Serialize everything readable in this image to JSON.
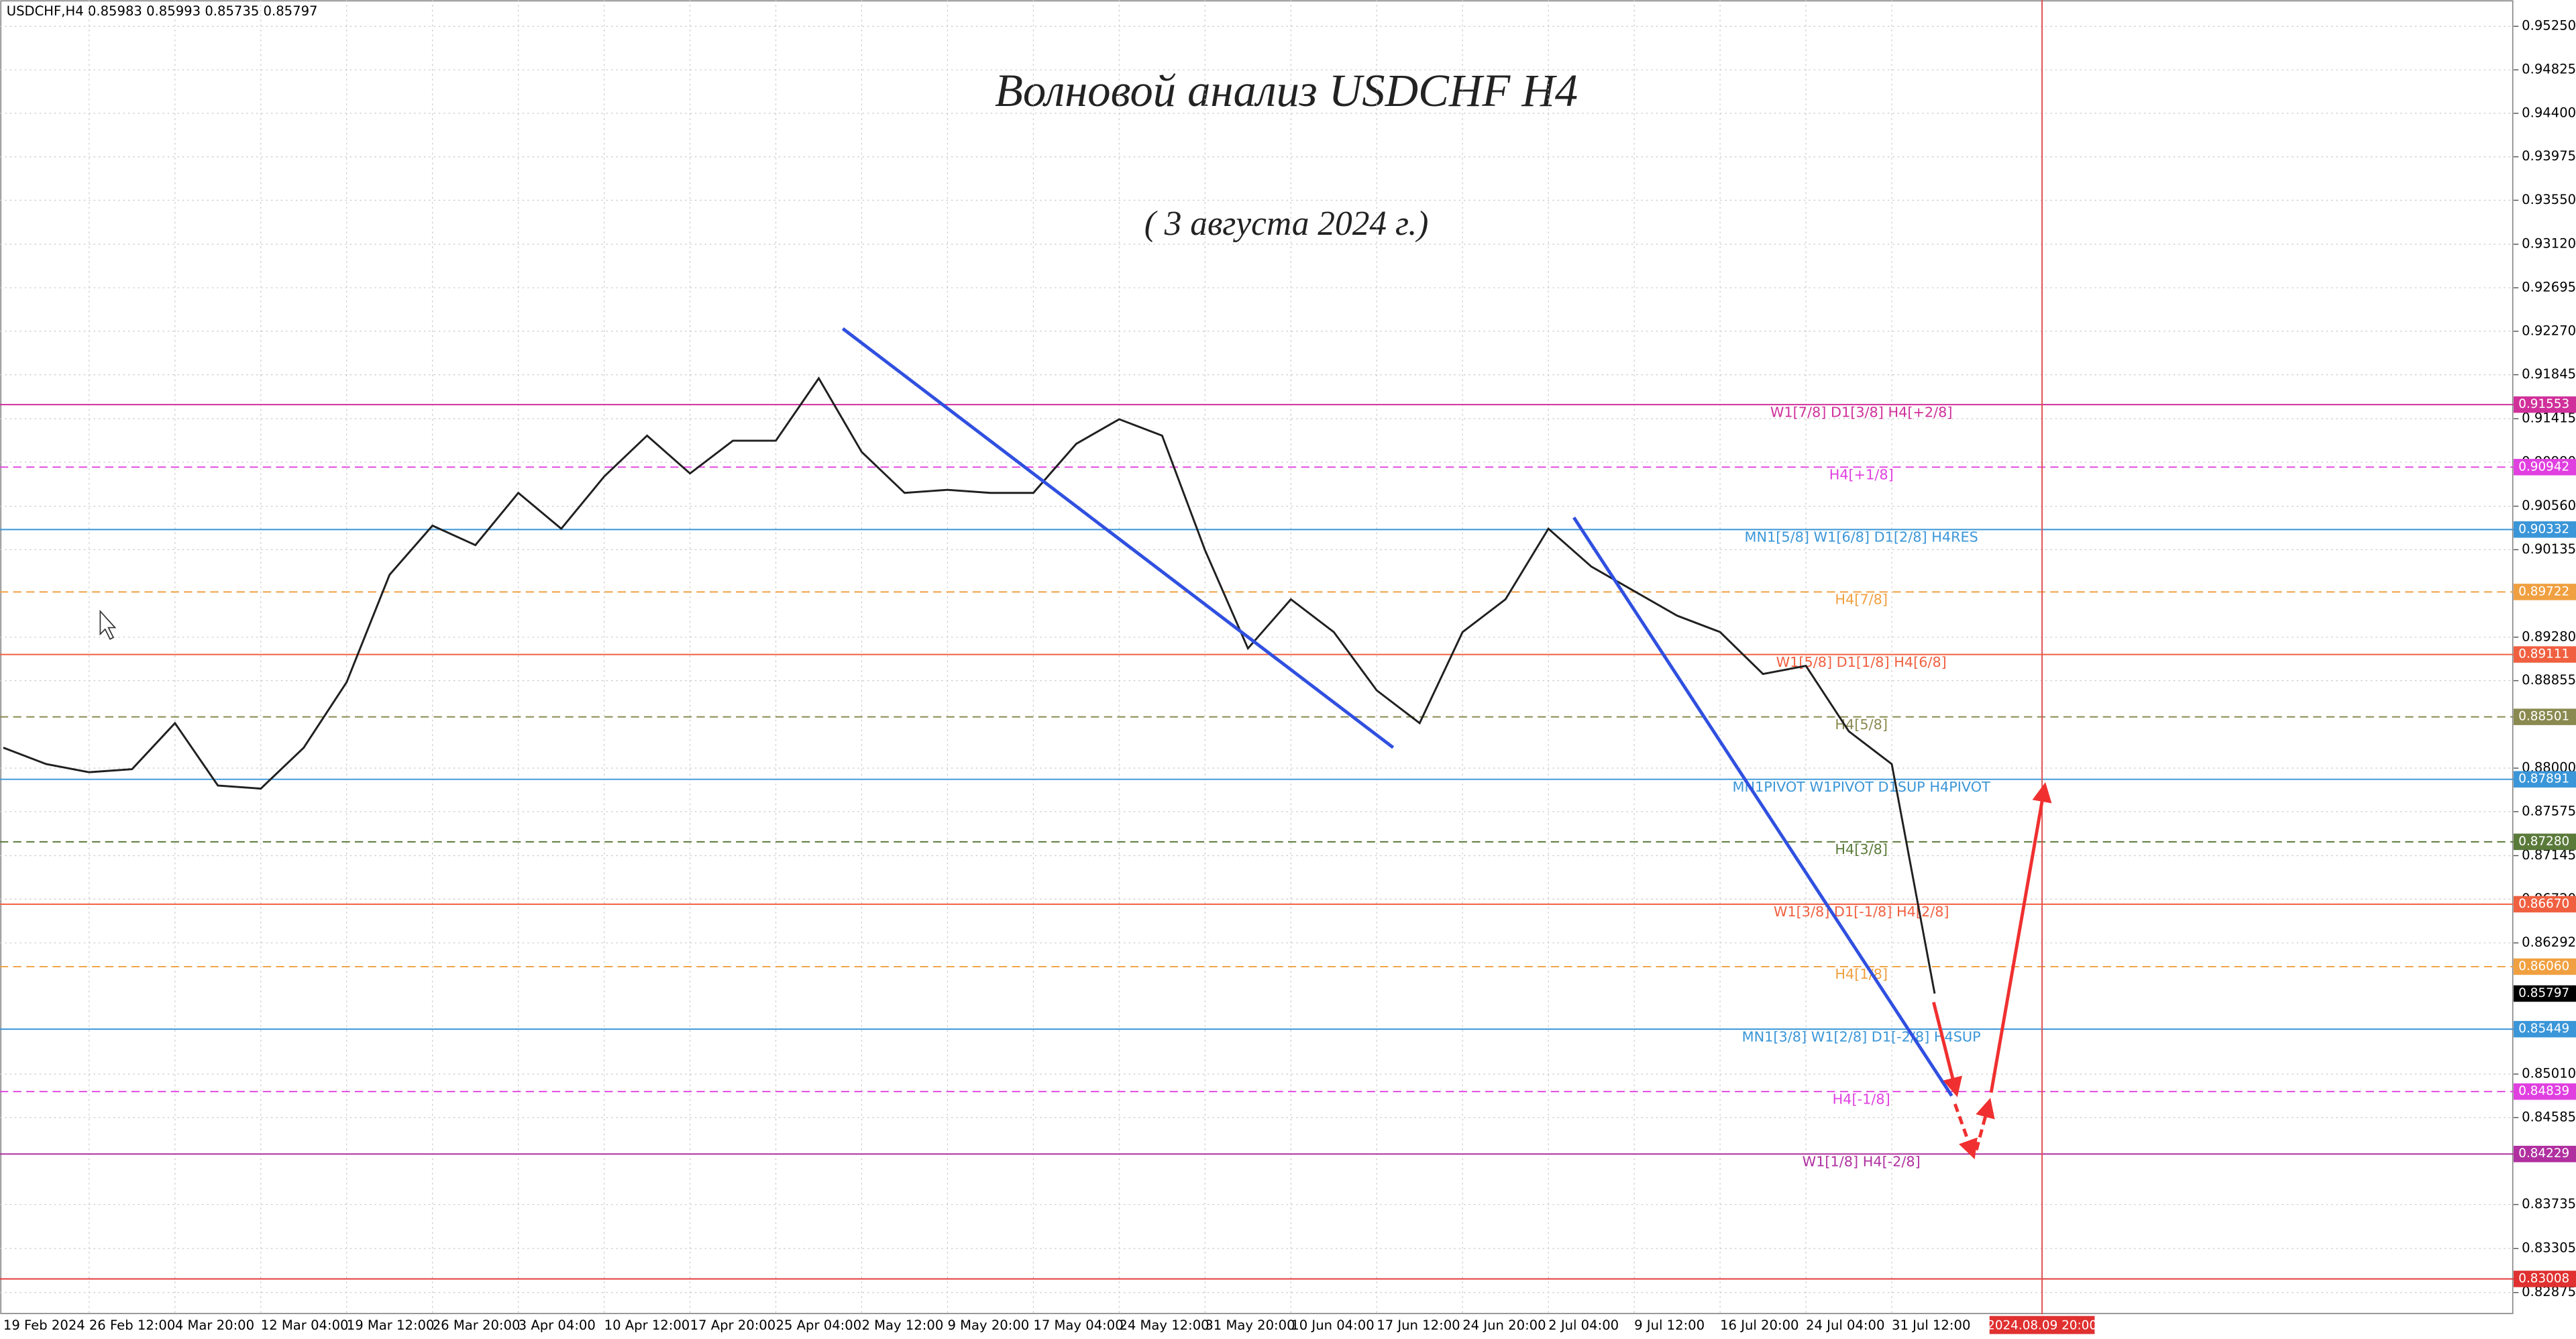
{
  "chart_data": {
    "type": "line",
    "symbol": "USDCHF,H4",
    "ohlc": [
      0.85983,
      0.85993,
      0.85735,
      0.85797
    ],
    "title": "Волновой анализ USDCHF H4",
    "subtitle": "( 3 августа 2024 г.)",
    "categories": [
      "19 Feb 2024",
      null,
      "26 Feb 12:00",
      null,
      "4 Mar 20:00",
      null,
      "12 Mar 04:00",
      null,
      "19 Mar 12:00",
      null,
      "26 Mar 20:00",
      null,
      "3 Apr 04:00",
      null,
      "10 Apr 12:00",
      null,
      "17 Apr 20:00",
      null,
      "25 Apr 04:00",
      null,
      "2 May 12:00",
      null,
      "9 May 20:00",
      null,
      "17 May 04:00",
      null,
      "24 May 12:00",
      null,
      "31 May 20:00",
      null,
      "10 Jun 04:00",
      null,
      "17 Jun 12:00",
      null,
      "24 Jun 20:00",
      null,
      "2 Jul 04:00",
      null,
      "9 Jul 12:00",
      null,
      "16 Jul 20:00",
      null,
      "24 Jul 04:00",
      null,
      "31 Jul 12:00",
      null
    ],
    "series": [
      {
        "color": "#202020",
        "values": [
          0.882,
          0.8804,
          0.8796,
          0.8799,
          0.8844,
          0.8783,
          0.878,
          0.882,
          0.8884,
          0.8989,
          0.9037,
          0.9018,
          0.9069,
          0.9034,
          0.9085,
          0.9125,
          0.9088,
          0.912,
          0.912,
          0.9181,
          0.9109,
          0.9069,
          0.9072,
          0.9069,
          0.9069,
          0.9117,
          0.9141,
          0.9125,
          0.9013,
          0.8917,
          0.8965,
          0.8933,
          0.8876,
          0.8844,
          0.8933,
          0.8965,
          0.9034,
          0.8997,
          0.8973,
          0.8949,
          0.8933,
          0.8892,
          0.89,
          0.8836,
          0.8804,
          0.85797
        ]
      }
    ],
    "current_price": 0.85797,
    "cursor_time": "2024.08.09 20:00",
    "ylim": [
      0.82662,
      0.95507
    ],
    "yticks": [
      {
        "value": 0.9525,
        "label": "0.95250"
      },
      0.94825,
      {
        "value": 0.944,
        "label": "0.94400"
      },
      0.93975,
      {
        "value": 0.9355,
        "label": "0.93550"
      },
      {
        "value": 0.9312,
        "label": "0.93120"
      },
      0.92695,
      {
        "value": 0.9227,
        "label": "0.92270"
      },
      0.91845,
      0.91415,
      {
        "value": 0.9099,
        "label": "0.90990"
      },
      {
        "value": 0.9056,
        "label": "0.90560"
      },
      0.90135,
      {
        "value": 0.8928,
        "label": "0.89280"
      },
      0.88855,
      {
        "value": 0.88,
        "label": "0.88000"
      },
      0.87575,
      0.87145,
      {
        "value": 0.8672,
        "label": "0.86720"
      },
      0.86292,
      {
        "value": 0.8501,
        "label": "0.85010"
      },
      0.84585,
      0.83735,
      0.83305,
      0.82875
    ],
    "grid": true,
    "levels": [
      {
        "price": 0.91553,
        "label": "W1[7/8] D1[3/8] H4[+2/8]",
        "color": "#d0309a",
        "dashed": false
      },
      {
        "price": 0.90942,
        "label": "H4[+1/8]",
        "color": "#e040e0",
        "dashed": true
      },
      {
        "price": 0.90332,
        "label": "MN1[5/8] W1[6/8] D1[2/8] H4RES",
        "color": "#3a96d8",
        "dashed": false
      },
      {
        "price": 0.89722,
        "label": "H4[7/8]",
        "color": "#f0a040",
        "dashed": true
      },
      {
        "price": 0.89111,
        "label": "W1[5/8] D1[1/8] H4[6/8]",
        "color": "#f06040",
        "dashed": false
      },
      {
        "price": 0.88501,
        "label": "H4[5/8]",
        "color": "#8a8a50",
        "dashed": true
      },
      {
        "price": 0.87891,
        "label": "MN1PIVOT W1PIVOT D1SUP H4PIVOT",
        "color": "#3a96d8",
        "dashed": false
      },
      {
        "price": {
          "value": 0.8728,
          "label": "0.87280"
        },
        "label": "H4[3/8]",
        "color": "#5a7a3a",
        "dashed": true
      },
      {
        "price": {
          "value": 0.8667,
          "label": "0.86670"
        },
        "label": "W1[3/8] D1[-1/8] H4[2/8]",
        "color": "#f06040",
        "dashed": false
      },
      {
        "price": {
          "value": 0.8606,
          "label": "0.86060"
        },
        "label": "H4[1/8]",
        "color": "#f0a040",
        "dashed": true
      },
      {
        "price": 0.85449,
        "label": "MN1[3/8] W1[2/8] D1[-2/8] H4SUP",
        "color": "#3a96d8",
        "dashed": false
      },
      {
        "price": 0.84839,
        "label": "H4[-1/8]",
        "color": "#e040e0",
        "dashed": true
      },
      {
        "price": 0.84229,
        "label": "W1[1/8] H4[-2/8]",
        "color": "#b030a0",
        "dashed": false
      },
      {
        "price": 0.83008,
        "color": "#e03030",
        "dashed": false
      }
    ]
  }
}
